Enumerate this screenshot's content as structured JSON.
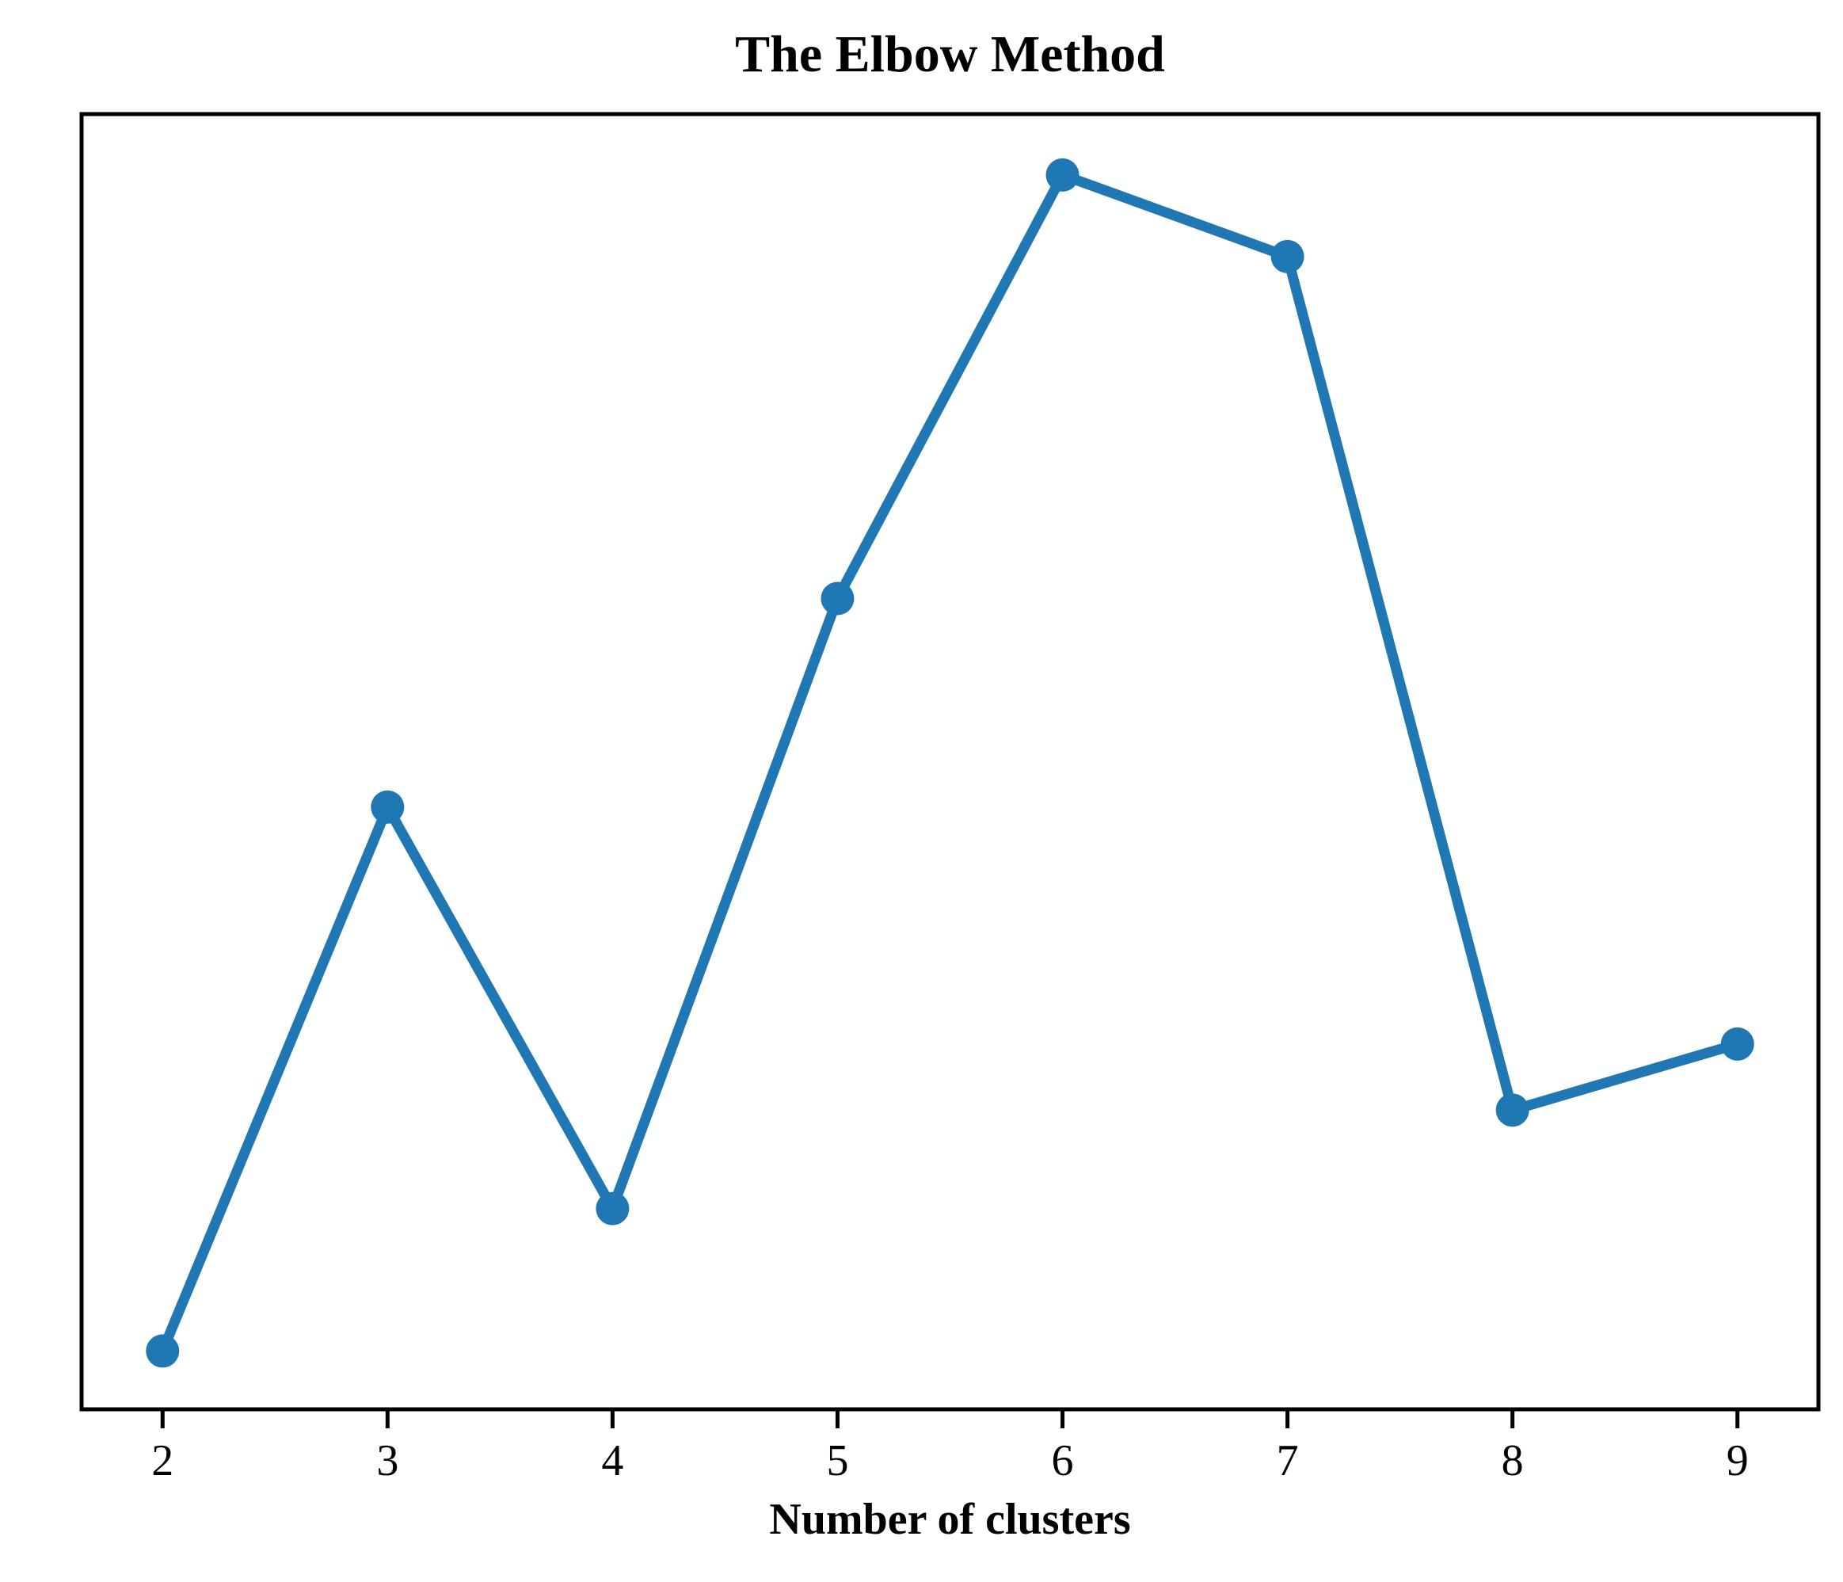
{
  "figure": {
    "title": "The Elbow Method",
    "x_axis_label": "Number of clusters"
  },
  "chart_data": {
    "type": "line",
    "title": "The Elbow Method",
    "xlabel": "Number of clusters",
    "ylabel": "",
    "x": [
      2,
      3,
      4,
      5,
      6,
      7,
      8,
      9
    ],
    "x_tick_labels": [
      "2",
      "3",
      "4",
      "5",
      "6",
      "7",
      "8",
      "9"
    ],
    "y_relative": [
      0.045,
      0.465,
      0.155,
      0.626,
      0.953,
      0.89,
      0.231,
      0.282
    ],
    "y_axis_note": "no y-axis ticks or labels visible; y values are fractions of plot height from the bottom axis",
    "xlim": [
      1.64,
      9.36
    ],
    "ylim": [
      0,
      1
    ],
    "line_color": "#1f77b4",
    "frame_color": "#000000",
    "marker": "circle",
    "grid": false,
    "legend": false
  }
}
